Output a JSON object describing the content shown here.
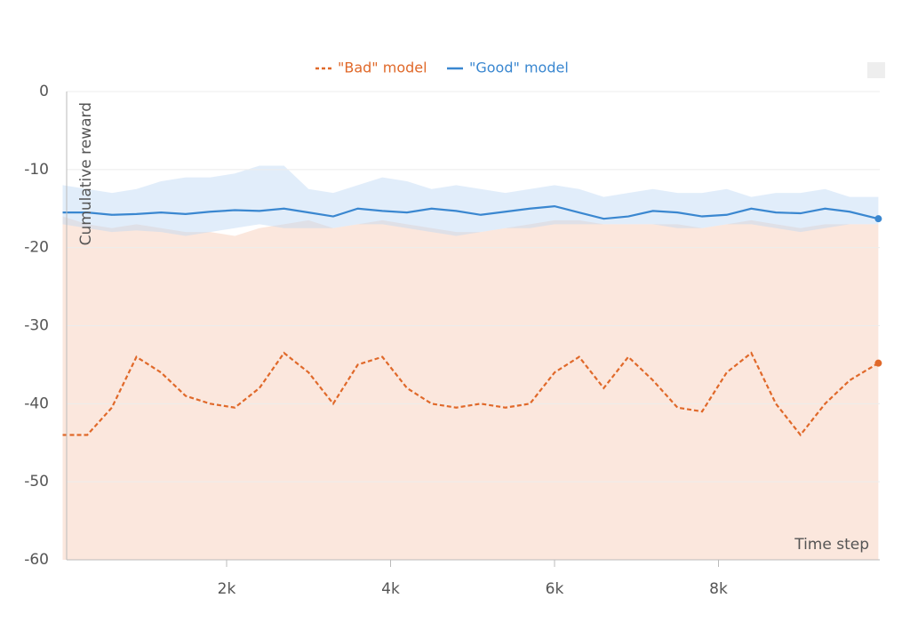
{
  "chart_data": {
    "type": "line",
    "x_label": "Time step",
    "y_label": "Cumulative reward",
    "x": [
      0,
      300,
      600,
      900,
      1200,
      1500,
      1800,
      2100,
      2400,
      2700,
      3000,
      3300,
      3600,
      3900,
      4200,
      4500,
      4800,
      5100,
      5400,
      5700,
      6000,
      6300,
      6600,
      6900,
      7200,
      7500,
      7800,
      8100,
      8400,
      8700,
      9000,
      9300,
      9600,
      9950
    ],
    "series": [
      {
        "name": "\"Bad\" model",
        "color": "#e0692a",
        "style": "dashed",
        "band_color": "#f7c9b4",
        "values": [
          -44,
          -44,
          -40.5,
          -34,
          -36,
          -39,
          -40,
          -40.5,
          -38,
          -33.5,
          -36,
          -40,
          -35,
          -34,
          -38,
          -40,
          -40.5,
          -40,
          -40.5,
          -40,
          -36,
          -34,
          -38,
          -34,
          -37,
          -40.5,
          -41,
          -36,
          -33.5,
          -40,
          -44,
          -40,
          -37,
          -34.8
        ],
        "upper": [
          -16,
          -17,
          -17.5,
          -17,
          -17.5,
          -18,
          -18,
          -18.5,
          -17.5,
          -17,
          -16.5,
          -17.5,
          -17,
          -16.5,
          -17,
          -17.5,
          -18,
          -18,
          -17.5,
          -17,
          -16.5,
          -16.5,
          -17,
          -17,
          -17,
          -17,
          -17.5,
          -17,
          -16.5,
          -17,
          -17.5,
          -17,
          -17,
          -17
        ],
        "lower": [
          -60,
          -60,
          -60,
          -60,
          -60,
          -60,
          -60,
          -60,
          -60,
          -60,
          -60,
          -60,
          -60,
          -60,
          -60,
          -60,
          -60,
          -60,
          -60,
          -60,
          -60,
          -60,
          -60,
          -60,
          -60,
          -60,
          -60,
          -60,
          -60,
          -60,
          -60,
          -60,
          -60,
          -60
        ]
      },
      {
        "name": "\"Good\" model",
        "color": "#3a87d0",
        "style": "solid",
        "band_color": "#bcd6f4",
        "values": [
          -15.5,
          -15.5,
          -15.8,
          -15.7,
          -15.5,
          -15.7,
          -15.4,
          -15.2,
          -15.3,
          -15,
          -15.5,
          -16,
          -15,
          -15.3,
          -15.5,
          -15,
          -15.3,
          -15.8,
          -15.4,
          -15,
          -14.7,
          -15.5,
          -16.3,
          -16,
          -15.3,
          -15.5,
          -16,
          -15.8,
          -15,
          -15.5,
          -15.6,
          -15,
          -15.4,
          -16.3
        ],
        "upper": [
          -12,
          -12.5,
          -13,
          -12.5,
          -11.5,
          -11,
          -11,
          -10.5,
          -9.5,
          -9.5,
          -12.5,
          -13,
          -12,
          -11,
          -11.5,
          -12.5,
          -12,
          -12.5,
          -13,
          -12.5,
          -12,
          -12.5,
          -13.5,
          -13,
          -12.5,
          -13,
          -13,
          -12.5,
          -13.5,
          -13,
          -13,
          -12.5,
          -13.5,
          -13.5
        ],
        "lower": [
          -17,
          -17.5,
          -18,
          -17.8,
          -18,
          -18.5,
          -18,
          -17.5,
          -17,
          -17.5,
          -17.5,
          -17.5,
          -17,
          -17,
          -17.5,
          -18,
          -18.5,
          -18,
          -17.5,
          -17.5,
          -17,
          -17,
          -17,
          -17,
          -17,
          -17.5,
          -17.5,
          -17,
          -17,
          -17.5,
          -18,
          -17.5,
          -17,
          -17
        ]
      }
    ],
    "xlim": [
      0,
      10000
    ],
    "ylim": [
      -60,
      0
    ],
    "xticks": [
      {
        "value": 2000,
        "label": "2k"
      },
      {
        "value": 4000,
        "label": "4k"
      },
      {
        "value": 6000,
        "label": "6k"
      },
      {
        "value": 8000,
        "label": "8k"
      }
    ],
    "yticks": [
      0,
      -10,
      -20,
      -30,
      -40,
      -50,
      -60
    ],
    "grid": true
  }
}
